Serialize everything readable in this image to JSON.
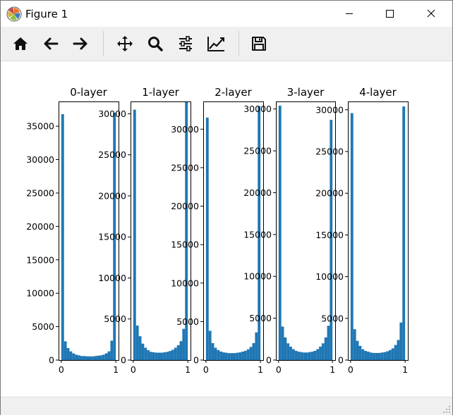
{
  "window": {
    "title": "Figure 1"
  },
  "toolbar": {
    "buttons": [
      {
        "name": "home-button",
        "icon": "home-icon"
      },
      {
        "name": "back-button",
        "icon": "arrow-left-icon"
      },
      {
        "name": "forward-button",
        "icon": "arrow-right-icon"
      },
      {
        "name": "pan-button",
        "icon": "move-icon"
      },
      {
        "name": "zoom-button",
        "icon": "magnifier-icon"
      },
      {
        "name": "configure-subplots-button",
        "icon": "sliders-icon"
      },
      {
        "name": "edit-axis-button",
        "icon": "line-chart-icon"
      },
      {
        "name": "save-button",
        "icon": "floppy-disk-icon"
      }
    ]
  },
  "colors": {
    "bar": "#1f77b4"
  },
  "chart_data": [
    {
      "type": "bar",
      "title": "0-layer",
      "xlim": [
        -0.05,
        1.05
      ],
      "ylim": [
        0,
        38700
      ],
      "xticks": [
        0,
        1
      ],
      "yticks": [
        0,
        5000,
        10000,
        15000,
        20000,
        25000,
        30000,
        35000
      ],
      "bin_width": 0.05,
      "bin_starts": [
        0.0,
        0.05,
        0.1,
        0.15,
        0.2,
        0.25,
        0.3,
        0.35,
        0.4,
        0.45,
        0.5,
        0.55,
        0.6,
        0.65,
        0.7,
        0.75,
        0.8,
        0.85,
        0.9,
        0.95
      ],
      "values": [
        36800,
        2800,
        1800,
        1300,
        1000,
        800,
        700,
        600,
        600,
        550,
        550,
        550,
        600,
        650,
        700,
        800,
        1000,
        1300,
        2900,
        37000
      ]
    },
    {
      "type": "bar",
      "title": "1-layer",
      "xlim": [
        -0.05,
        1.05
      ],
      "ylim": [
        0,
        31500
      ],
      "xticks": [
        0,
        1
      ],
      "yticks": [
        0,
        5000,
        10000,
        15000,
        20000,
        25000,
        30000
      ],
      "bin_width": 0.05,
      "bin_starts": [
        0.0,
        0.05,
        0.1,
        0.15,
        0.2,
        0.25,
        0.3,
        0.35,
        0.4,
        0.45,
        0.5,
        0.55,
        0.6,
        0.65,
        0.7,
        0.75,
        0.8,
        0.85,
        0.9,
        0.95
      ],
      "values": [
        30500,
        4200,
        2900,
        2000,
        1500,
        1200,
        1000,
        950,
        900,
        900,
        900,
        950,
        1000,
        1100,
        1250,
        1500,
        1800,
        2300,
        3800,
        31500
      ]
    },
    {
      "type": "bar",
      "title": "2-layer",
      "xlim": [
        -0.05,
        1.05
      ],
      "ylim": [
        0,
        33600
      ],
      "xticks": [
        0,
        1
      ],
      "yticks": [
        0,
        5000,
        10000,
        15000,
        20000,
        25000,
        30000
      ],
      "bin_width": 0.05,
      "bin_starts": [
        0.0,
        0.05,
        0.1,
        0.15,
        0.2,
        0.25,
        0.3,
        0.35,
        0.4,
        0.45,
        0.5,
        0.55,
        0.6,
        0.65,
        0.7,
        0.75,
        0.8,
        0.85,
        0.9,
        0.95
      ],
      "values": [
        31500,
        3800,
        2200,
        1600,
        1300,
        1100,
        1000,
        950,
        900,
        900,
        900,
        950,
        1000,
        1100,
        1200,
        1400,
        1700,
        2200,
        3600,
        33000
      ]
    },
    {
      "type": "bar",
      "title": "3-layer",
      "xlim": [
        -0.05,
        1.05
      ],
      "ylim": [
        0,
        30900
      ],
      "xticks": [
        0,
        1
      ],
      "yticks": [
        0,
        5000,
        10000,
        15000,
        20000,
        25000,
        30000
      ],
      "bin_width": 0.05,
      "bin_starts": [
        0.0,
        0.05,
        0.1,
        0.15,
        0.2,
        0.25,
        0.3,
        0.35,
        0.4,
        0.45,
        0.5,
        0.55,
        0.6,
        0.65,
        0.7,
        0.75,
        0.8,
        0.85,
        0.9,
        0.95
      ],
      "values": [
        30400,
        4000,
        2700,
        2000,
        1600,
        1300,
        1100,
        1000,
        950,
        900,
        900,
        950,
        1000,
        1100,
        1300,
        1600,
        2000,
        2700,
        4100,
        28700
      ]
    },
    {
      "type": "bar",
      "title": "4-layer",
      "xlim": [
        -0.05,
        1.05
      ],
      "ylim": [
        0,
        31000
      ],
      "xticks": [
        0,
        1
      ],
      "yticks": [
        0,
        5000,
        10000,
        15000,
        20000,
        25000,
        30000
      ],
      "bin_width": 0.05,
      "bin_starts": [
        0.0,
        0.05,
        0.1,
        0.15,
        0.2,
        0.25,
        0.3,
        0.35,
        0.4,
        0.45,
        0.5,
        0.55,
        0.6,
        0.65,
        0.7,
        0.75,
        0.8,
        0.85,
        0.9,
        0.95
      ],
      "values": [
        29600,
        3700,
        2300,
        1700,
        1300,
        1100,
        1000,
        900,
        850,
        850,
        850,
        900,
        950,
        1050,
        1200,
        1400,
        1800,
        2400,
        4500,
        30400
      ]
    }
  ]
}
